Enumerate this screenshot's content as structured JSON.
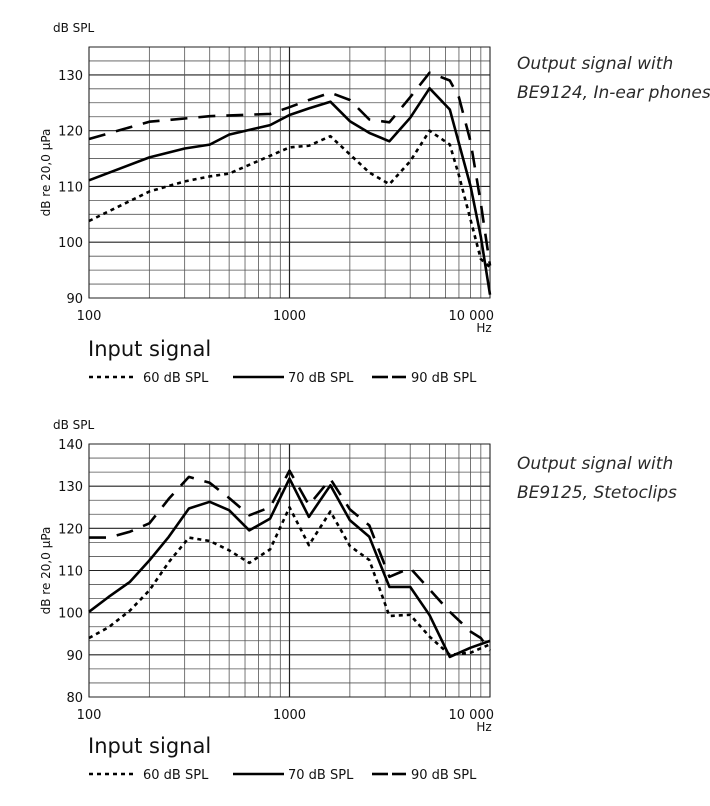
{
  "chart_data": [
    {
      "type": "line",
      "title": [
        "Output signal with",
        "BE9124, In-ear phones"
      ],
      "unit_label": "dB SPL",
      "ylabel": "dB re 20,0 µPa",
      "xlabel": "Hz",
      "x_scale": "log",
      "xlim": [
        100,
        10000
      ],
      "ylim": [
        90,
        135
      ],
      "x_ticks": [
        100,
        1000,
        10000
      ],
      "x_tick_labels": [
        "100",
        "1000",
        "10 000"
      ],
      "y_ticks": [
        90,
        100,
        110,
        120,
        130
      ],
      "y_tick_labels": [
        "90",
        "100",
        "110",
        "120",
        "130"
      ],
      "grid": true,
      "legend_title": "Input signal",
      "legend_position": "bottom",
      "series": [
        {
          "name": "60 dB SPL",
          "style": "dotted",
          "x": [
            100,
            200,
            300,
            400,
            500,
            800,
            1000,
            1250,
            1600,
            2500,
            3150,
            4000,
            5000,
            6300,
            7000,
            8000,
            9000,
            10000
          ],
          "y": [
            103.8,
            109.1,
            110.9,
            111.8,
            112.3,
            115.5,
            117,
            117.3,
            119,
            112.5,
            110.4,
            114.5,
            120,
            117.5,
            112,
            104,
            97,
            95.5
          ]
        },
        {
          "name": "70 dB SPL",
          "style": "solid",
          "x": [
            100,
            200,
            300,
            400,
            500,
            800,
            1000,
            1250,
            1600,
            2000,
            2500,
            3150,
            4000,
            5000,
            6300,
            8000,
            9000,
            10000
          ],
          "y": [
            111.1,
            115.2,
            116.8,
            117.5,
            119.3,
            121,
            122.8,
            124,
            125.2,
            121.7,
            119.6,
            118.1,
            122.3,
            127.6,
            123.8,
            110,
            101,
            90.6
          ]
        },
        {
          "name": "90 dB SPL",
          "style": "dashed",
          "x": [
            100,
            200,
            400,
            800,
            1000,
            1250,
            1600,
            2000,
            2500,
            3150,
            4000,
            5000,
            6300,
            7000,
            8000,
            9000,
            10000
          ],
          "y": [
            118.5,
            121.6,
            122.6,
            123,
            124.2,
            125.5,
            126.8,
            125.5,
            122,
            121.5,
            126,
            130.4,
            129,
            126,
            118,
            107,
            95.8
          ]
        }
      ]
    },
    {
      "type": "line",
      "title": [
        "Output signal with",
        "BE9125, Stetoclips"
      ],
      "unit_label": "dB SPL",
      "ylabel": "dB re 20,0 µPa",
      "xlabel": "Hz",
      "x_scale": "log",
      "xlim": [
        100,
        10000
      ],
      "ylim": [
        80,
        140
      ],
      "x_ticks": [
        100,
        1000,
        10000
      ],
      "x_tick_labels": [
        "100",
        "1000",
        "10 000"
      ],
      "y_ticks": [
        80,
        90,
        100,
        110,
        120,
        130,
        140
      ],
      "y_tick_labels": [
        "80",
        "90",
        "100",
        "110",
        "120",
        "130",
        "140"
      ],
      "grid": true,
      "legend_title": "Input signal",
      "legend_position": "bottom",
      "series": [
        {
          "name": "60 dB SPL",
          "style": "dotted",
          "x": [
            100,
            125,
            160,
            200,
            250,
            315,
            400,
            500,
            630,
            800,
            1000,
            1250,
            1600,
            2000,
            2500,
            3150,
            4000,
            5000,
            6300,
            8000,
            10000
          ],
          "y": [
            94,
            96.5,
            100.5,
            105.3,
            112,
            117.8,
            117,
            114.8,
            111.8,
            115,
            125,
            116,
            124,
            115.8,
            112.5,
            99.2,
            99.5,
            94.3,
            90,
            90.5,
            92.5
          ]
        },
        {
          "name": "70 dB SPL",
          "style": "solid",
          "x": [
            100,
            125,
            160,
            200,
            250,
            315,
            400,
            500,
            630,
            800,
            1000,
            1250,
            1600,
            2000,
            2500,
            3150,
            4000,
            5000,
            6300,
            8000,
            10000
          ],
          "y": [
            100.2,
            103.7,
            107.3,
            112.4,
            118,
            124.7,
            126.3,
            124.3,
            119.5,
            122.3,
            131.8,
            122.7,
            130.2,
            121.9,
            118,
            106.1,
            106.1,
            99.4,
            89.5,
            91.7,
            93.3
          ]
        },
        {
          "name": "90 dB SPL",
          "style": "dashed",
          "x": [
            100,
            125,
            160,
            200,
            250,
            315,
            400,
            500,
            630,
            800,
            1000,
            1250,
            1600,
            2000,
            2500,
            3150,
            4000,
            5000,
            6300,
            8000,
            9000,
            10000
          ],
          "y": [
            117.8,
            117.8,
            119.2,
            121.2,
            127,
            132.2,
            130.8,
            127.2,
            123.1,
            125,
            133.7,
            125.5,
            131.7,
            124.5,
            120.7,
            108.5,
            110.6,
            105.5,
            100.2,
            95.5,
            94,
            91
          ]
        }
      ]
    }
  ]
}
